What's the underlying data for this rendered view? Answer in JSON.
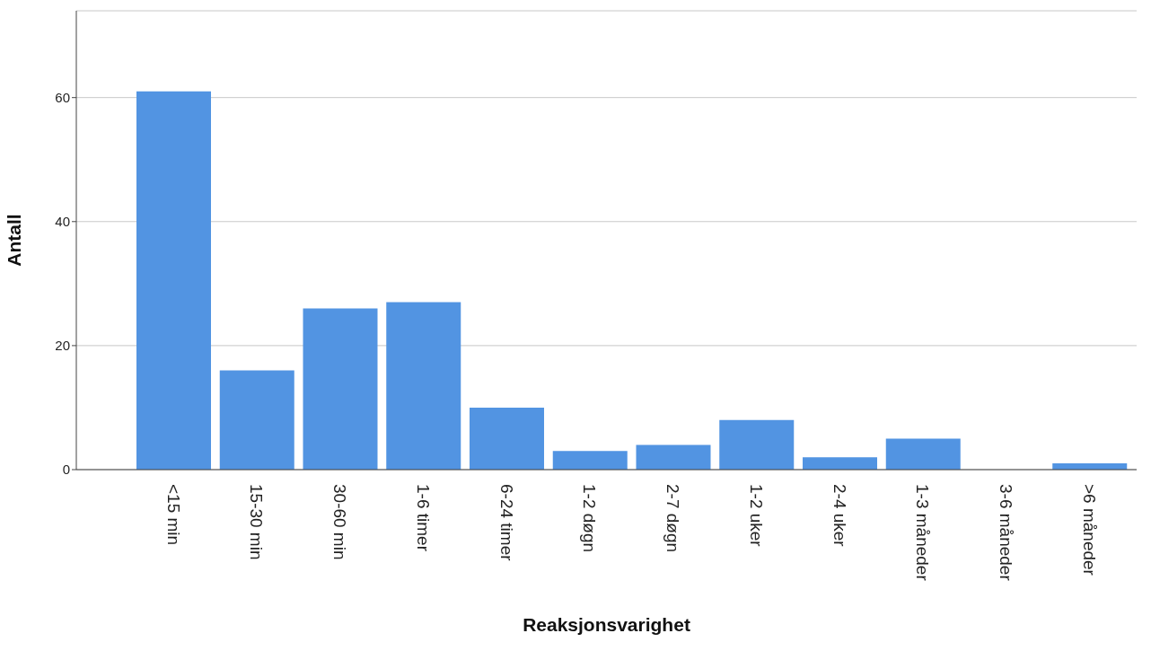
{
  "chart_data": {
    "type": "bar",
    "xlabel": "Reaksjonsvarighet",
    "ylabel": "Antall",
    "categories": [
      "<15 min",
      "15-30 min",
      "30-60 min",
      "1-6 timer",
      "6-24 timer",
      "1-2 døgn",
      "2-7 døgn",
      "1-2 uker",
      "2-4 uker",
      "1-3 måneder",
      "3-6 måneder",
      ">6 måneder"
    ],
    "values": [
      61,
      16,
      26,
      27,
      10,
      3,
      4,
      8,
      2,
      5,
      0,
      1
    ],
    "color": "#5294e2",
    "ylim": [
      0,
      74
    ],
    "yticks": [
      0,
      20,
      40,
      60
    ],
    "grid": "y",
    "legend": false
  }
}
